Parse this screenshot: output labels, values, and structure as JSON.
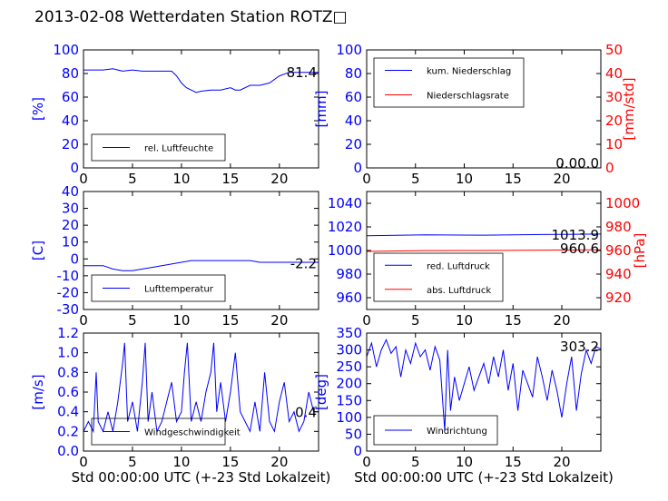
{
  "figure": {
    "title": "2013-02-08 Wetterdaten Station ROTZ□",
    "xlabel": "Std 00:00:00 UTC (+-23 Std Lokalzeit)"
  },
  "colors": {
    "left_axis": "#0000ff",
    "right_axis": "#ff0000",
    "line_blue": "#0000ff",
    "line_red": "#ff0000"
  },
  "chart_data": [
    {
      "id": "humidity",
      "type": "line",
      "ylabel": "[%]",
      "ylim": [
        0,
        100
      ],
      "yticks": [
        0,
        20,
        40,
        60,
        80,
        100
      ],
      "xlim": [
        0,
        24
      ],
      "xticks": [
        0,
        5,
        10,
        15,
        20
      ],
      "legend": "lower-left",
      "annotation": "81.4",
      "series": [
        {
          "name": "rel. Luftfeuchte",
          "axis": "left",
          "color": "#0000ff",
          "x": [
            0,
            1,
            2,
            3,
            4,
            5,
            6,
            7,
            8,
            9,
            9.5,
            10,
            10.5,
            11,
            11.5,
            12,
            13,
            14,
            15,
            15.5,
            16,
            17,
            18,
            19,
            20,
            21,
            22,
            23,
            24
          ],
          "y": [
            83,
            83,
            83,
            84,
            82,
            83,
            82,
            82,
            82,
            82,
            78,
            72,
            68,
            66,
            64,
            65,
            66,
            66,
            68,
            66,
            66,
            70,
            70,
            72,
            78,
            81,
            81,
            81,
            81
          ]
        }
      ]
    },
    {
      "id": "precipitation",
      "type": "line",
      "ylabel": "[mm]",
      "ylim": [
        0,
        100
      ],
      "yticks": [
        0,
        20,
        40,
        60,
        80,
        100
      ],
      "y2label": "[mm/std]",
      "y2lim": [
        0,
        50
      ],
      "y2ticks": [
        0,
        10,
        20,
        30,
        40,
        50
      ],
      "xlim": [
        0,
        24
      ],
      "xticks": [
        0,
        5,
        10,
        15,
        20
      ],
      "legend": "upper-left",
      "annotation": "0.00.0",
      "series": [
        {
          "name": "kum. Niederschlag",
          "axis": "left",
          "color": "#0000ff",
          "x": [
            0,
            24
          ],
          "y": [
            0,
            0
          ]
        },
        {
          "name": "Niederschlagsrate",
          "axis": "right",
          "color": "#ff0000",
          "x": [
            0,
            24
          ],
          "y": [
            0,
            0
          ]
        }
      ]
    },
    {
      "id": "temperature",
      "type": "line",
      "ylabel": "[C]",
      "ylim": [
        -30,
        40
      ],
      "yticks": [
        -30,
        -20,
        -10,
        0,
        10,
        20,
        30,
        40
      ],
      "xlim": [
        0,
        24
      ],
      "xticks": [
        0,
        5,
        10,
        15,
        20
      ],
      "legend": "lower-left",
      "annotation": "-2.2",
      "series": [
        {
          "name": "Lufttemperatur",
          "axis": "left",
          "color": "#0000ff",
          "x": [
            0,
            1,
            2,
            3,
            4,
            5,
            6,
            7,
            8,
            9,
            10,
            11,
            12,
            13,
            14,
            15,
            16,
            17,
            18,
            19,
            20,
            21,
            22,
            23,
            24
          ],
          "y": [
            -4,
            -4,
            -4,
            -6,
            -7,
            -7,
            -6,
            -5,
            -4,
            -3,
            -2,
            -1,
            -1,
            -1,
            -1,
            -1,
            -1,
            -1,
            -2,
            -2,
            -2,
            -2,
            -2,
            -2,
            -2
          ]
        }
      ]
    },
    {
      "id": "pressure",
      "type": "line",
      "ylabel": "",
      "ylim": [
        950,
        1050
      ],
      "yticks": [
        960,
        980,
        1000,
        1020,
        1040
      ],
      "y2label": "[hPa]",
      "y2lim": [
        910,
        1010
      ],
      "y2ticks": [
        920,
        940,
        960,
        980,
        1000
      ],
      "xlim": [
        0,
        24
      ],
      "xticks": [
        0,
        5,
        10,
        15,
        20
      ],
      "legend": "lower-left",
      "annotations": [
        "1013.9",
        "960.6"
      ],
      "series": [
        {
          "name": "red. Luftdruck",
          "axis": "left",
          "color": "#0000ff",
          "x": [
            0,
            6,
            12,
            18,
            24
          ],
          "y": [
            1012.5,
            1013.3,
            1013.0,
            1013.5,
            1013.9
          ]
        },
        {
          "name": "abs. Luftdruck",
          "axis": "right",
          "color": "#ff0000",
          "x": [
            0,
            6,
            12,
            18,
            24
          ],
          "y": [
            959.2,
            959.9,
            960.0,
            960.3,
            960.6
          ]
        }
      ]
    },
    {
      "id": "windspeed",
      "type": "line",
      "ylabel": "[m/s]",
      "ylim": [
        0,
        1.2
      ],
      "yticks": [
        0.0,
        0.2,
        0.4,
        0.6,
        0.8,
        1.0,
        1.2
      ],
      "xlim": [
        0,
        24
      ],
      "xticks": [
        0,
        5,
        10,
        15,
        20
      ],
      "legend": "lower-left",
      "annotation": "0.4",
      "series": [
        {
          "name": "Windgeschwindigkeit",
          "axis": "left",
          "color": "#0000ff",
          "x": [
            0,
            0.5,
            1,
            1.3,
            1.5,
            2,
            2.5,
            3,
            3.5,
            4,
            4.2,
            4.5,
            5,
            5.5,
            6,
            6.3,
            6.6,
            7,
            7.5,
            8,
            8.5,
            9,
            9.5,
            10,
            10.3,
            10.6,
            11,
            11.5,
            12,
            12.5,
            13,
            13.3,
            13.6,
            14,
            14.5,
            15,
            15.5,
            16,
            16.5,
            17,
            17.5,
            18,
            18.5,
            19,
            19.5,
            20,
            20.5,
            21,
            21.5,
            22,
            22.5,
            23,
            23.5,
            24
          ],
          "y": [
            0.2,
            0.3,
            0.2,
            0.8,
            0.3,
            0.2,
            0.4,
            0.2,
            0.5,
            0.9,
            1.1,
            0.3,
            0.5,
            0.2,
            0.7,
            1.1,
            0.3,
            0.6,
            0.2,
            0.3,
            0.5,
            0.7,
            0.3,
            0.4,
            0.8,
            1.1,
            0.3,
            0.5,
            0.3,
            0.6,
            0.8,
            1.1,
            0.4,
            0.7,
            0.3,
            0.6,
            1.0,
            0.4,
            0.3,
            0.2,
            0.5,
            0.2,
            0.8,
            0.3,
            0.2,
            0.5,
            0.7,
            0.3,
            0.4,
            0.2,
            0.3,
            0.6,
            0.4,
            0.4
          ]
        }
      ]
    },
    {
      "id": "winddirection",
      "type": "line",
      "ylabel": "[deg]",
      "ylim": [
        0,
        350
      ],
      "yticks": [
        0,
        50,
        100,
        150,
        200,
        250,
        300,
        350
      ],
      "xlim": [
        0,
        24
      ],
      "xticks": [
        0,
        5,
        10,
        15,
        20
      ],
      "legend": "lower-left",
      "annotation": "303.2",
      "series": [
        {
          "name": "Windrichtung",
          "axis": "left",
          "color": "#0000ff",
          "x": [
            0,
            0.5,
            1,
            1.5,
            2,
            2.5,
            3,
            3.5,
            4,
            4.5,
            5,
            5.5,
            6,
            6.5,
            7,
            7.5,
            8,
            8.3,
            8.6,
            9,
            9.5,
            10,
            10.5,
            11,
            11.5,
            12,
            12.5,
            13,
            13.5,
            14,
            14.5,
            15,
            15.5,
            16,
            16.5,
            17,
            17.5,
            18,
            18.5,
            19,
            19.5,
            20,
            20.5,
            21,
            21.5,
            22,
            22.5,
            23,
            23.5,
            24
          ],
          "y": [
            280,
            320,
            250,
            300,
            330,
            290,
            310,
            220,
            300,
            260,
            320,
            280,
            300,
            240,
            310,
            270,
            60,
            300,
            120,
            220,
            150,
            200,
            250,
            180,
            220,
            260,
            200,
            280,
            220,
            300,
            180,
            260,
            120,
            240,
            200,
            160,
            280,
            220,
            150,
            240,
            180,
            100,
            200,
            280,
            120,
            230,
            300,
            260,
            310,
            303
          ]
        }
      ]
    }
  ]
}
